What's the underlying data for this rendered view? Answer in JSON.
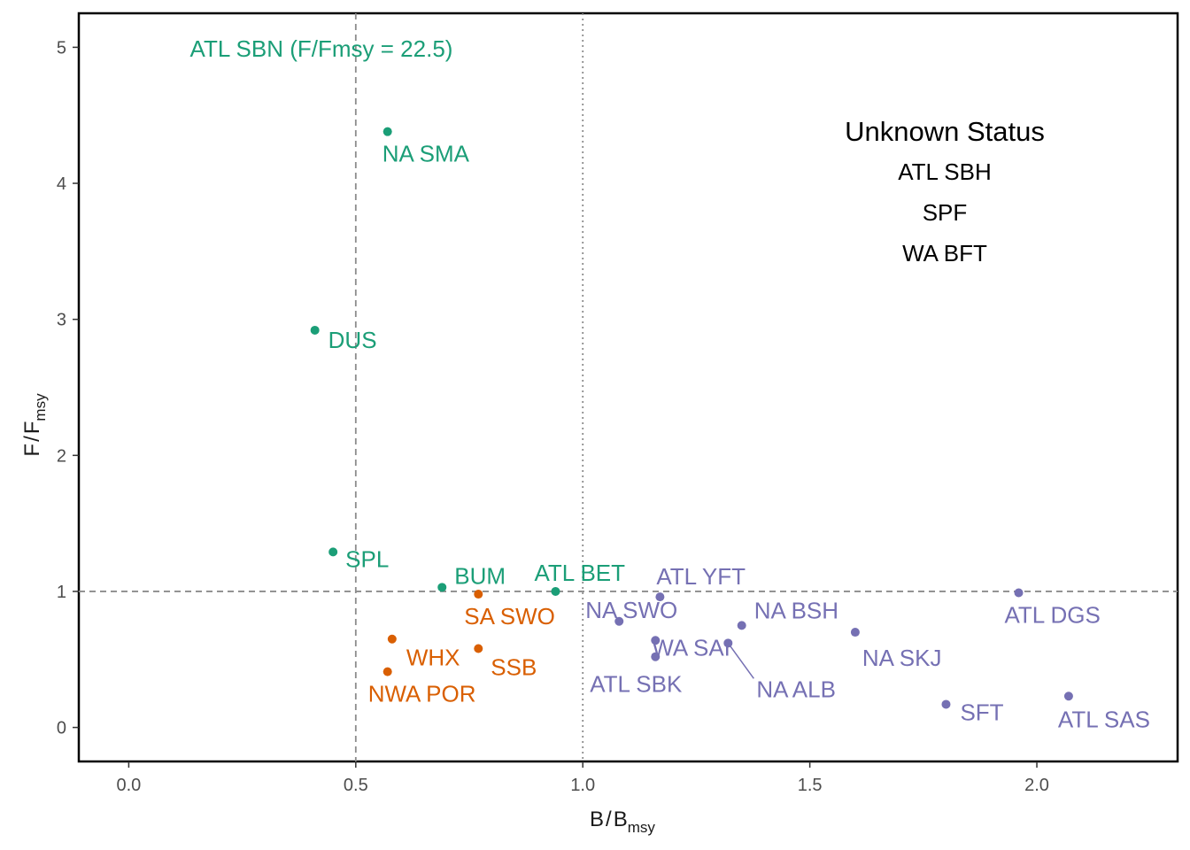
{
  "chart_data": {
    "type": "scatter",
    "xlabel": {
      "main": "B",
      "sep": "/",
      "base": "B",
      "sub": "msy"
    },
    "ylabel": {
      "main": "F",
      "sep": "/",
      "base": "F",
      "sub": "msy"
    },
    "xlim": [
      -0.11,
      2.31
    ],
    "ylim": [
      -0.25,
      5.25
    ],
    "x_ticks": [
      0.0,
      0.5,
      1.0,
      1.5,
      2.0
    ],
    "x_tick_labels": [
      "0.0",
      "0.5",
      "1.0",
      "1.5",
      "2.0"
    ],
    "y_ticks": [
      0,
      1,
      2,
      3,
      4,
      5
    ],
    "y_tick_labels": [
      "0",
      "1",
      "2",
      "3",
      "4",
      "5"
    ],
    "grid": false,
    "reference_lines": [
      {
        "axis": "x",
        "value": 0.5,
        "style": "dashed"
      },
      {
        "axis": "x",
        "value": 1.0,
        "style": "dotted"
      },
      {
        "axis": "y",
        "value": 1.0,
        "style": "dashed"
      }
    ],
    "colors": {
      "green": "#1b9e77",
      "orange": "#d95f02",
      "purple": "#7570b3"
    },
    "points": [
      {
        "label": "NA SMA",
        "x": 0.57,
        "y": 4.38,
        "color": "green"
      },
      {
        "label": "DUS",
        "x": 0.41,
        "y": 2.92,
        "color": "green"
      },
      {
        "label": "SPL",
        "x": 0.45,
        "y": 1.29,
        "color": "green"
      },
      {
        "label": "BUM",
        "x": 0.69,
        "y": 1.03,
        "color": "green"
      },
      {
        "label": "ATL BET",
        "x": 0.94,
        "y": 1.0,
        "color": "green"
      },
      {
        "label": "SA SWO",
        "x": 0.77,
        "y": 0.98,
        "color": "orange"
      },
      {
        "label": "WHX",
        "x": 0.58,
        "y": 0.65,
        "color": "orange"
      },
      {
        "label": "SSB",
        "x": 0.77,
        "y": 0.58,
        "color": "orange"
      },
      {
        "label": "NWA POR",
        "x": 0.57,
        "y": 0.41,
        "color": "orange"
      },
      {
        "label": "ATL YFT",
        "x": 1.17,
        "y": 0.96,
        "color": "purple"
      },
      {
        "label": "NA SWO",
        "x": 1.08,
        "y": 0.78,
        "color": "purple"
      },
      {
        "label": "NA BSH",
        "x": 1.35,
        "y": 0.75,
        "color": "purple"
      },
      {
        "label": "WA SAI",
        "x": 1.16,
        "y": 0.64,
        "color": "purple"
      },
      {
        "label": "ATL SBK",
        "x": 1.16,
        "y": 0.52,
        "color": "purple"
      },
      {
        "label": "NA ALB",
        "x": 1.32,
        "y": 0.62,
        "color": "purple"
      },
      {
        "label": "NA SKJ",
        "x": 1.6,
        "y": 0.7,
        "color": "purple"
      },
      {
        "label": "ATL DGS",
        "x": 1.96,
        "y": 0.99,
        "color": "purple"
      },
      {
        "label": "SFT",
        "x": 1.8,
        "y": 0.17,
        "color": "purple"
      },
      {
        "label": "ATL SAS",
        "x": 2.07,
        "y": 0.23,
        "color": "purple"
      }
    ],
    "annotations": [
      {
        "text": "ATL SBN (F/Fmsy = 22.5)",
        "color": "green"
      }
    ],
    "unknown_status": {
      "title": "Unknown Status",
      "items": [
        "ATL SBH",
        "SPF",
        "WA BFT"
      ]
    }
  }
}
